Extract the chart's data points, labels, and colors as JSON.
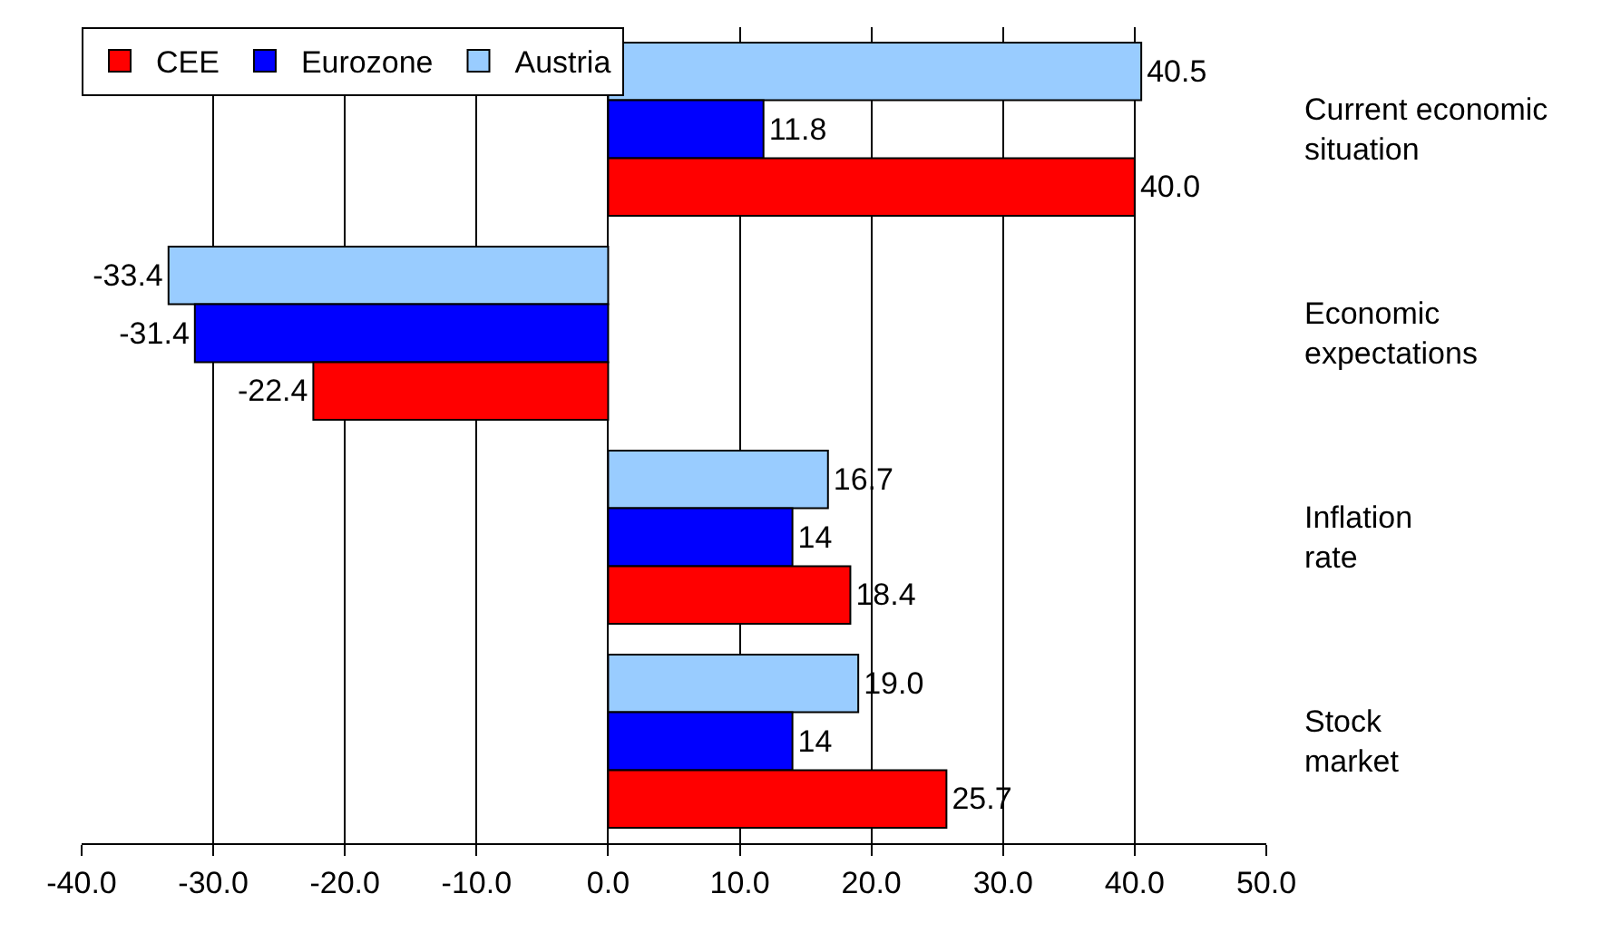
{
  "chart_data": {
    "type": "bar",
    "orientation": "horizontal",
    "categories": [
      "Current economic situation",
      "Economic expectations",
      "Inflation rate",
      "Stock market"
    ],
    "series": [
      {
        "name": "CEE",
        "color": "#ff0000",
        "values": [
          40.0,
          -22.4,
          18.4,
          25.7
        ],
        "value_labels": [
          "40.0",
          "-22.4",
          "18.4",
          "25.7"
        ]
      },
      {
        "name": "Eurozone",
        "color": "#0000ff",
        "values": [
          11.8,
          -31.4,
          14,
          14
        ],
        "value_labels": [
          "11.8",
          "-31.4",
          "14",
          "14"
        ]
      },
      {
        "name": "Austria",
        "color": "#99ccff",
        "values": [
          40.5,
          -33.4,
          16.7,
          19.0
        ],
        "value_labels": [
          "40.5",
          "-33.4",
          "16.7",
          "19.0"
        ]
      }
    ],
    "xlim": [
      -40,
      50
    ],
    "xticks": [
      {
        "value": -40,
        "label": "-40.0"
      },
      {
        "value": -30,
        "label": "-30.0"
      },
      {
        "value": -20,
        "label": "-20.0"
      },
      {
        "value": -10,
        "label": "-10.0"
      },
      {
        "value": 0,
        "label": "0.0"
      },
      {
        "value": 10,
        "label": "10.0"
      },
      {
        "value": 20,
        "label": "20.0"
      },
      {
        "value": 30,
        "label": "30.0"
      },
      {
        "value": 40,
        "label": "40.0"
      },
      {
        "value": 50,
        "label": "50.0"
      }
    ],
    "grid": "x",
    "legend": "top left"
  }
}
